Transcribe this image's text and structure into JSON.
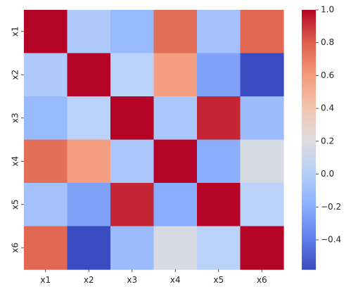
{
  "chart_data": {
    "type": "heatmap",
    "title": "",
    "xlabel": "",
    "ylabel": "",
    "x_categories": [
      "x1",
      "x2",
      "x3",
      "x4",
      "x5",
      "x6"
    ],
    "y_categories": [
      "x1",
      "x2",
      "x3",
      "x4",
      "x5",
      "x6"
    ],
    "values": [
      [
        1.0,
        -0.03,
        -0.13,
        0.75,
        -0.08,
        0.78
      ],
      [
        -0.03,
        1.0,
        0.03,
        0.58,
        -0.25,
        -0.58
      ],
      [
        -0.13,
        0.03,
        1.0,
        -0.05,
        0.93,
        -0.12
      ],
      [
        0.75,
        0.58,
        -0.05,
        1.0,
        -0.2,
        0.17
      ],
      [
        -0.08,
        -0.25,
        0.93,
        -0.2,
        1.0,
        0.03
      ],
      [
        0.78,
        -0.58,
        -0.12,
        0.17,
        0.03,
        1.0
      ]
    ],
    "colormap": "coolwarm",
    "color_range": [
      -0.58,
      1.0
    ],
    "colorbar": {
      "ticks": [
        1.0,
        0.8,
        0.6,
        0.4,
        0.2,
        0.0,
        -0.2,
        -0.4
      ],
      "tick_labels": [
        "1.0",
        "0.8",
        "0.6",
        "0.4",
        "0.2",
        "0.0",
        "−0.2",
        "−0.4"
      ]
    },
    "grid": false,
    "legend": "colorbar-right"
  }
}
